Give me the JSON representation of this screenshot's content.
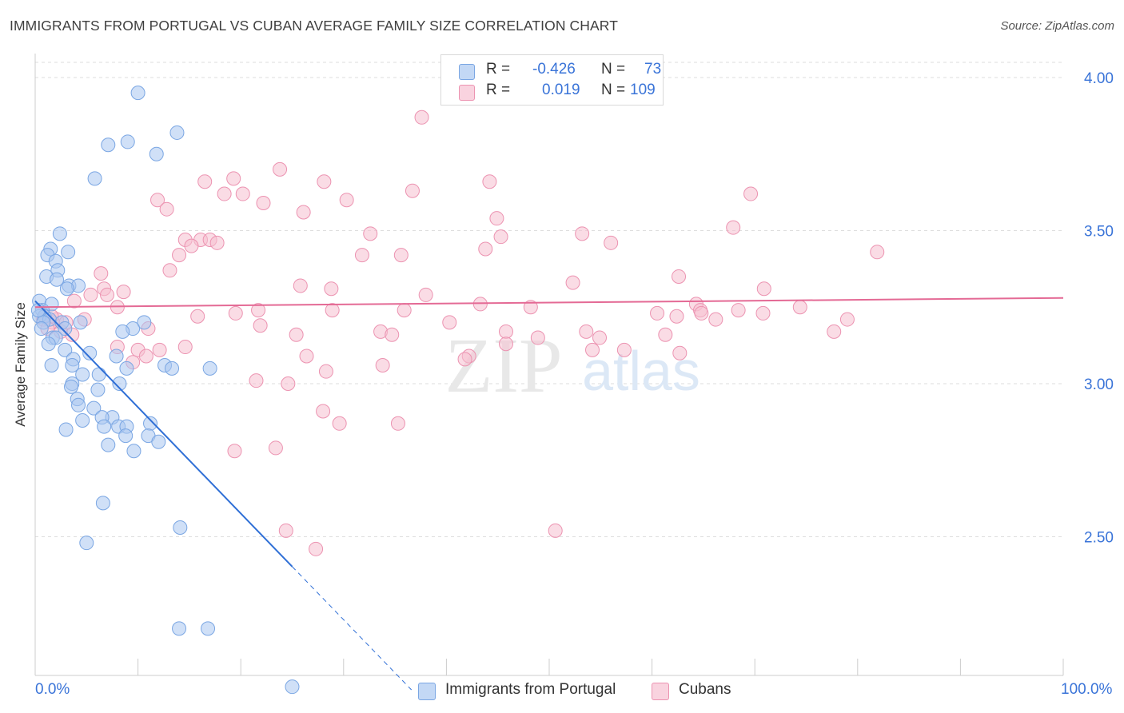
{
  "header": {
    "title": "IMMIGRANTS FROM PORTUGAL VS CUBAN AVERAGE FAMILY SIZE CORRELATION CHART",
    "source": "Source: ZipAtlas.com"
  },
  "watermark": {
    "zip": "ZIP",
    "atlas": "atlas"
  },
  "legend_top": {
    "rows": [
      {
        "r_label": "R =",
        "r_value": "-0.426",
        "n_label": "N =",
        "n_value": "73"
      },
      {
        "r_label": "R =",
        "r_value": "0.019",
        "n_label": "N =",
        "n_value": "109"
      }
    ]
  },
  "legend_bottom": {
    "portugal": "Immigrants from Portugal",
    "cubans": "Cubans"
  },
  "colors": {
    "portugal_fill": "#a9c6f0",
    "portugal_stroke": "#7aa6e3",
    "portugal_line": "#2f6fd6",
    "cubans_fill": "#f6c0d0",
    "cubans_stroke": "#ec93b1",
    "cubans_line": "#e46a95",
    "axis_text": "#3a74d8",
    "grid": "#dedede"
  },
  "chart_data": {
    "type": "scatter",
    "title": "IMMIGRANTS FROM PORTUGAL VS CUBAN AVERAGE FAMILY SIZE CORRELATION CHART",
    "xlabel": "",
    "ylabel": "Average Family Size",
    "xlim": [
      0,
      100
    ],
    "ylim": [
      2.0,
      4.1
    ],
    "x_tick_labels": [
      "0.0%",
      "100.0%"
    ],
    "y_ticks": [
      2.5,
      3.0,
      3.5,
      4.0
    ],
    "y_tick_labels": [
      "2.50",
      "3.00",
      "3.50",
      "4.00"
    ],
    "grid": true,
    "legend_position": "top-center",
    "series": [
      {
        "name": "Immigrants from Portugal",
        "r": -0.426,
        "n": 73,
        "trend": {
          "x0": 0,
          "y0": 3.27,
          "x1": 100,
          "y1": -0.2,
          "solid_until_x": 25
        },
        "points": [
          [
            10.0,
            3.95
          ],
          [
            7.1,
            3.78
          ],
          [
            9.0,
            3.79
          ],
          [
            11.8,
            3.75
          ],
          [
            13.8,
            3.82
          ],
          [
            5.8,
            3.67
          ],
          [
            2.4,
            3.49
          ],
          [
            1.5,
            3.44
          ],
          [
            3.2,
            3.43
          ],
          [
            1.2,
            3.42
          ],
          [
            2.0,
            3.4
          ],
          [
            2.2,
            3.37
          ],
          [
            1.1,
            3.35
          ],
          [
            2.1,
            3.34
          ],
          [
            3.3,
            3.32
          ],
          [
            4.2,
            3.32
          ],
          [
            3.1,
            3.31
          ],
          [
            0.4,
            3.27
          ],
          [
            1.6,
            3.26
          ],
          [
            0.7,
            3.24
          ],
          [
            0.9,
            3.22
          ],
          [
            0.4,
            3.22
          ],
          [
            1.4,
            3.21
          ],
          [
            0.8,
            3.2
          ],
          [
            2.6,
            3.2
          ],
          [
            4.4,
            3.2
          ],
          [
            10.6,
            3.2
          ],
          [
            9.5,
            3.18
          ],
          [
            8.5,
            3.17
          ],
          [
            0.6,
            3.18
          ],
          [
            2.9,
            3.18
          ],
          [
            1.7,
            3.15
          ],
          [
            2.0,
            3.15
          ],
          [
            1.3,
            3.13
          ],
          [
            2.9,
            3.11
          ],
          [
            5.3,
            3.1
          ],
          [
            7.9,
            3.09
          ],
          [
            3.7,
            3.08
          ],
          [
            1.6,
            3.06
          ],
          [
            3.6,
            3.06
          ],
          [
            8.9,
            3.05
          ],
          [
            12.6,
            3.06
          ],
          [
            13.3,
            3.05
          ],
          [
            17.0,
            3.05
          ],
          [
            6.2,
            3.03
          ],
          [
            4.6,
            3.03
          ],
          [
            3.6,
            3.0
          ],
          [
            3.5,
            2.99
          ],
          [
            8.2,
            3.0
          ],
          [
            6.1,
            2.98
          ],
          [
            4.1,
            2.95
          ],
          [
            4.2,
            2.93
          ],
          [
            5.7,
            2.92
          ],
          [
            7.5,
            2.89
          ],
          [
            6.5,
            2.89
          ],
          [
            4.6,
            2.88
          ],
          [
            3.0,
            2.85
          ],
          [
            6.7,
            2.86
          ],
          [
            8.1,
            2.86
          ],
          [
            8.9,
            2.86
          ],
          [
            11.2,
            2.87
          ],
          [
            11.0,
            2.83
          ],
          [
            8.8,
            2.83
          ],
          [
            12.0,
            2.81
          ],
          [
            7.1,
            2.8
          ],
          [
            9.6,
            2.78
          ],
          [
            6.6,
            2.61
          ],
          [
            14.1,
            2.53
          ],
          [
            5.0,
            2.48
          ],
          [
            14.0,
            2.2
          ],
          [
            16.8,
            2.2
          ],
          [
            25.0,
            2.01
          ],
          [
            0.3,
            3.24
          ]
        ]
      },
      {
        "name": "Cubans",
        "r": 0.019,
        "n": 109,
        "trend": {
          "x0": 0,
          "y0": 3.25,
          "x1": 100,
          "y1": 3.28
        },
        "points": [
          [
            37.6,
            3.87
          ],
          [
            23.8,
            3.7
          ],
          [
            16.5,
            3.66
          ],
          [
            19.3,
            3.67
          ],
          [
            28.1,
            3.66
          ],
          [
            44.2,
            3.66
          ],
          [
            36.7,
            3.63
          ],
          [
            18.4,
            3.62
          ],
          [
            20.2,
            3.62
          ],
          [
            69.6,
            3.62
          ],
          [
            11.9,
            3.6
          ],
          [
            22.2,
            3.59
          ],
          [
            30.3,
            3.6
          ],
          [
            12.8,
            3.57
          ],
          [
            26.1,
            3.56
          ],
          [
            44.9,
            3.54
          ],
          [
            67.9,
            3.51
          ],
          [
            32.6,
            3.49
          ],
          [
            53.2,
            3.49
          ],
          [
            45.3,
            3.48
          ],
          [
            14.6,
            3.47
          ],
          [
            16.1,
            3.47
          ],
          [
            17.0,
            3.47
          ],
          [
            17.7,
            3.46
          ],
          [
            15.2,
            3.45
          ],
          [
            56.0,
            3.46
          ],
          [
            43.8,
            3.44
          ],
          [
            14.0,
            3.42
          ],
          [
            31.8,
            3.42
          ],
          [
            35.6,
            3.42
          ],
          [
            81.9,
            3.43
          ],
          [
            13.1,
            3.37
          ],
          [
            6.4,
            3.36
          ],
          [
            62.6,
            3.35
          ],
          [
            25.8,
            3.32
          ],
          [
            28.8,
            3.31
          ],
          [
            52.3,
            3.33
          ],
          [
            70.9,
            3.31
          ],
          [
            38.0,
            3.29
          ],
          [
            6.7,
            3.31
          ],
          [
            5.4,
            3.29
          ],
          [
            8.6,
            3.3
          ],
          [
            7.0,
            3.29
          ],
          [
            3.8,
            3.27
          ],
          [
            21.7,
            3.24
          ],
          [
            43.3,
            3.26
          ],
          [
            48.2,
            3.25
          ],
          [
            64.3,
            3.26
          ],
          [
            8.0,
            3.25
          ],
          [
            35.9,
            3.24
          ],
          [
            28.9,
            3.24
          ],
          [
            60.5,
            3.23
          ],
          [
            74.4,
            3.25
          ],
          [
            64.7,
            3.24
          ],
          [
            64.8,
            3.23
          ],
          [
            68.4,
            3.24
          ],
          [
            70.8,
            3.23
          ],
          [
            15.8,
            3.22
          ],
          [
            19.5,
            3.23
          ],
          [
            62.4,
            3.22
          ],
          [
            66.2,
            3.21
          ],
          [
            79.0,
            3.21
          ],
          [
            40.3,
            3.2
          ],
          [
            21.9,
            3.19
          ],
          [
            4.8,
            3.21
          ],
          [
            2.1,
            3.21
          ],
          [
            1.7,
            3.2
          ],
          [
            11.0,
            3.18
          ],
          [
            2.5,
            3.17
          ],
          [
            33.6,
            3.17
          ],
          [
            25.4,
            3.16
          ],
          [
            45.8,
            3.17
          ],
          [
            53.6,
            3.17
          ],
          [
            61.3,
            3.16
          ],
          [
            77.7,
            3.17
          ],
          [
            3.6,
            3.16
          ],
          [
            48.9,
            3.15
          ],
          [
            54.9,
            3.15
          ],
          [
            34.7,
            3.16
          ],
          [
            8.0,
            3.12
          ],
          [
            10.0,
            3.11
          ],
          [
            14.6,
            3.12
          ],
          [
            12.1,
            3.11
          ],
          [
            45.8,
            3.13
          ],
          [
            54.2,
            3.11
          ],
          [
            57.3,
            3.11
          ],
          [
            10.8,
            3.09
          ],
          [
            9.5,
            3.07
          ],
          [
            26.4,
            3.09
          ],
          [
            42.2,
            3.09
          ],
          [
            41.8,
            3.08
          ],
          [
            62.7,
            3.1
          ],
          [
            33.8,
            3.06
          ],
          [
            28.3,
            3.04
          ],
          [
            21.5,
            3.01
          ],
          [
            24.6,
            3.0
          ],
          [
            28.0,
            2.91
          ],
          [
            29.6,
            2.87
          ],
          [
            35.3,
            2.87
          ],
          [
            19.4,
            2.78
          ],
          [
            23.4,
            2.79
          ],
          [
            24.4,
            2.52
          ],
          [
            27.3,
            2.46
          ],
          [
            50.6,
            2.52
          ],
          [
            1.6,
            3.22
          ],
          [
            0.8,
            3.21
          ],
          [
            3.0,
            3.2
          ],
          [
            1.2,
            3.18
          ],
          [
            0.9,
            3.22
          ]
        ]
      }
    ]
  }
}
